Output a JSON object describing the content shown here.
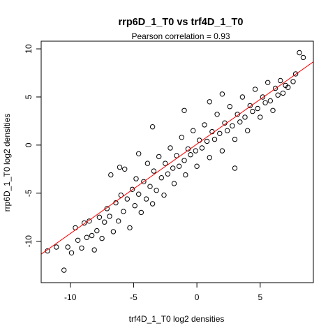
{
  "chart_data": {
    "type": "scatter",
    "title": "rrp6D_1_T0 vs trf4D_1_T0",
    "subtitle": "Pearson correlation =  0.93",
    "xlabel": "trf4D_1_T0 log2 densities",
    "ylabel": "rrp6D_1_T0 log2 densities",
    "xlim": [
      -12.3,
      9.2
    ],
    "ylim": [
      -14.3,
      10.8
    ],
    "xticks": [
      -10,
      -5,
      0,
      5
    ],
    "yticks": [
      -10,
      -5,
      0,
      5,
      10
    ],
    "xtick_labels": [
      "-10",
      "-5",
      "0",
      "5"
    ],
    "ytick_labels": [
      "-10",
      "-5",
      "0",
      "5",
      "10"
    ],
    "grid": false,
    "point_color": "#000000",
    "fit_line_color": "#ff0000",
    "fit_line": {
      "slope": 0.93,
      "intercept": 0.1
    },
    "points": [
      [
        -11.8,
        -11.0
      ],
      [
        -11.1,
        -10.6
      ],
      [
        -10.5,
        -13.0
      ],
      [
        -10.2,
        -10.6
      ],
      [
        -9.9,
        -11.2
      ],
      [
        -9.6,
        -8.6
      ],
      [
        -9.4,
        -9.9
      ],
      [
        -9.1,
        -10.7
      ],
      [
        -8.9,
        -8.1
      ],
      [
        -8.7,
        -9.6
      ],
      [
        -8.5,
        -7.9
      ],
      [
        -8.3,
        -9.4
      ],
      [
        -8.1,
        -10.9
      ],
      [
        -7.9,
        -8.9
      ],
      [
        -7.7,
        -7.5
      ],
      [
        -7.5,
        -9.7
      ],
      [
        -7.3,
        -8.0
      ],
      [
        -7.1,
        -6.6
      ],
      [
        -6.9,
        -7.4
      ],
      [
        -6.8,
        -3.1
      ],
      [
        -6.6,
        -9.0
      ],
      [
        -6.4,
        -6.0
      ],
      [
        -6.2,
        -7.9
      ],
      [
        -6.0,
        -5.2
      ],
      [
        -5.8,
        -6.9
      ],
      [
        -5.7,
        -2.5
      ],
      [
        -5.5,
        -5.6
      ],
      [
        -5.3,
        -8.6
      ],
      [
        -5.1,
        -4.6
      ],
      [
        -4.9,
        -6.3
      ],
      [
        -4.8,
        -3.5
      ],
      [
        -4.6,
        -5.1
      ],
      [
        -4.4,
        -7.0
      ],
      [
        -4.2,
        -3.8
      ],
      [
        -4.0,
        -5.6
      ],
      [
        -3.9,
        -1.9
      ],
      [
        -3.7,
        -4.3
      ],
      [
        -3.5,
        -6.1
      ],
      [
        -3.4,
        -2.7
      ],
      [
        -3.2,
        -4.7
      ],
      [
        -3.0,
        -1.2
      ],
      [
        -2.8,
        -3.4
      ],
      [
        -2.6,
        -5.2
      ],
      [
        -2.5,
        -1.9
      ],
      [
        -2.3,
        -3.0
      ],
      [
        -2.1,
        -0.3
      ],
      [
        -1.9,
        -2.4
      ],
      [
        -1.8,
        -4.0
      ],
      [
        -1.6,
        -1.1
      ],
      [
        -1.4,
        -2.2
      ],
      [
        -1.2,
        0.8
      ],
      [
        -1.0,
        -1.6
      ],
      [
        -0.9,
        -3.1
      ],
      [
        -0.7,
        -0.4
      ],
      [
        -0.5,
        -1.0
      ],
      [
        -0.3,
        1.5
      ],
      [
        -0.1,
        -0.6
      ],
      [
        0.0,
        -2.2
      ],
      [
        0.2,
        0.5
      ],
      [
        0.4,
        -0.3
      ],
      [
        0.6,
        2.1
      ],
      [
        0.8,
        0.4
      ],
      [
        1.0,
        -1.3
      ],
      [
        1.2,
        1.4
      ],
      [
        1.4,
        0.6
      ],
      [
        1.6,
        3.2
      ],
      [
        1.8,
        1.2
      ],
      [
        2.0,
        -0.6
      ],
      [
        2.2,
        2.3
      ],
      [
        2.4,
        1.5
      ],
      [
        2.6,
        4.0
      ],
      [
        2.8,
        2.0
      ],
      [
        3.0,
        0.6
      ],
      [
        3.2,
        3.2
      ],
      [
        3.4,
        2.4
      ],
      [
        3.6,
        5.0
      ],
      [
        3.8,
        2.9
      ],
      [
        4.0,
        1.5
      ],
      [
        4.2,
        4.1
      ],
      [
        4.4,
        3.5
      ],
      [
        4.6,
        5.8
      ],
      [
        4.8,
        3.8
      ],
      [
        5.0,
        2.9
      ],
      [
        5.2,
        5.0
      ],
      [
        5.4,
        4.4
      ],
      [
        5.6,
        6.5
      ],
      [
        5.8,
        4.6
      ],
      [
        6.0,
        3.6
      ],
      [
        6.2,
        5.9
      ],
      [
        6.4,
        5.2
      ],
      [
        6.6,
        6.7
      ],
      [
        6.8,
        5.4
      ],
      [
        7.0,
        6.2
      ],
      [
        7.2,
        6.0
      ],
      [
        7.6,
        6.6
      ],
      [
        7.8,
        7.4
      ],
      [
        8.1,
        9.6
      ],
      [
        8.4,
        9.1
      ],
      [
        -3.5,
        1.9
      ],
      [
        -4.6,
        -0.9
      ],
      [
        1.0,
        4.5
      ],
      [
        3.0,
        -2.4
      ],
      [
        -1.0,
        3.6
      ],
      [
        2.0,
        5.3
      ],
      [
        -6.1,
        -2.3
      ]
    ]
  }
}
